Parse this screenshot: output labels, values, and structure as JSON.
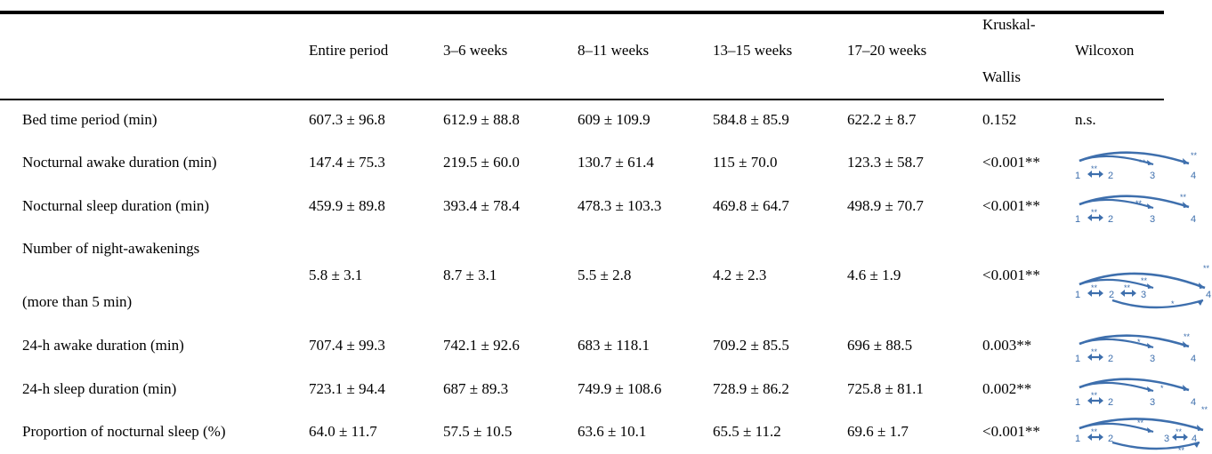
{
  "headers": {
    "entire": "Entire period",
    "w3_6": "3–6 weeks",
    "w8_11": "8–11 weeks",
    "w13_15": "13–15 weeks",
    "w17_20": "17–20 weeks",
    "kw_line1": "Kruskal-",
    "kw_line2": "Wallis",
    "wilcoxon": "Wilcoxon"
  },
  "rows": [
    {
      "label": "Bed time period (min)",
      "entire": "607.3 ± 96.8",
      "w3_6": "612.9 ± 88.8",
      "w8_11": "609 ± 109.9",
      "w13_15": "584.8 ± 85.9",
      "w17_20": "622.2 ± 8.7",
      "kw": "0.152",
      "wilcoxon": "n.s."
    },
    {
      "label": "Nocturnal awake duration (min)",
      "entire": "147.4 ± 75.3",
      "w3_6": "219.5 ± 60.0",
      "w8_11": "130.7 ± 61.4",
      "w13_15": "115 ± 70.0",
      "w17_20": "123.3 ± 58.7",
      "kw": "<0.001**"
    },
    {
      "label": "Nocturnal sleep duration (min)",
      "entire": "459.9 ± 89.8",
      "w3_6": "393.4 ± 78.4",
      "w8_11": "478.3 ± 103.3",
      "w13_15": "469.8 ± 64.7",
      "w17_20": "498.9 ± 70.7",
      "kw": "<0.001**"
    },
    {
      "label": "Number of night-awakenings",
      "label2": "(more than 5 min)",
      "entire": "5.8 ± 3.1",
      "w3_6": "8.7 ± 3.1",
      "w8_11": "5.5 ± 2.8",
      "w13_15": "4.2 ± 2.3",
      "w17_20": "4.6 ± 1.9",
      "kw": "<0.001**"
    },
    {
      "label": "24-h awake duration (min)",
      "entire": "707.4 ± 99.3",
      "w3_6": "742.1 ± 92.6",
      "w8_11": "683 ± 118.1",
      "w13_15": "709.2 ± 85.5",
      "w17_20": "696 ± 88.5",
      "kw": "0.003**"
    },
    {
      "label": "24-h sleep duration (min)",
      "entire": "723.1 ± 94.4",
      "w3_6": "687 ± 89.3",
      "w8_11": "749.9 ± 108.6",
      "w13_15": "728.9 ± 86.2",
      "w17_20": "725.8 ± 81.1",
      "kw": "0.002**"
    },
    {
      "label": "Proportion of nocturnal sleep (%)",
      "entire": "64.0 ± 11.7",
      "w3_6": "57.5 ± 10.5",
      "w8_11": "63.6 ± 10.1",
      "w13_15": "65.5 ± 11.2",
      "w17_20": "69.6 ± 1.7",
      "kw": "<0.001**"
    }
  ],
  "wilcoxon_diagram": {
    "nodes": [
      "1",
      "2",
      "3",
      "4"
    ],
    "double": "**",
    "single": "*",
    "arrow_color": "#3e6fad"
  }
}
